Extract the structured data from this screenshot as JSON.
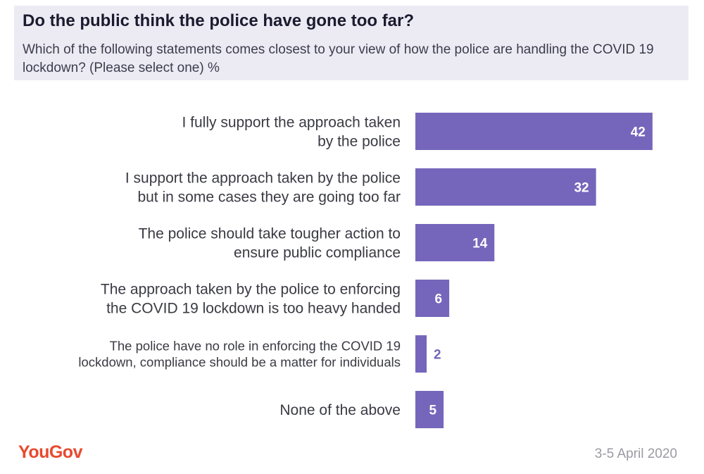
{
  "header": {
    "title": "Do the public think the police have gone too far?",
    "subtitle": "Which of the following statements comes closest to your view of how the police are handling the COVID 19 lockdown? (Please select one) %"
  },
  "chart_data": {
    "type": "bar",
    "orientation": "horizontal",
    "categories": [
      [
        "I fully support the approach taken",
        "by the police"
      ],
      [
        "I support the approach taken by the police",
        "but in some cases they are going too far"
      ],
      [
        "The police should take tougher action to",
        "ensure public compliance"
      ],
      [
        "The approach taken by the police to enforcing",
        "the COVID 19 lockdown is too heavy handed"
      ],
      [
        "The police have no role in enforcing the COVID 19",
        "lockdown, compliance should be a matter for individuals"
      ],
      [
        "None of the above"
      ]
    ],
    "values": [
      42,
      32,
      14,
      6,
      2,
      5
    ],
    "value_labels": [
      "42",
      "32",
      "14",
      "6",
      "2",
      "5"
    ],
    "bar_color": "#7566bb",
    "grid": false
  },
  "footer": {
    "logo": "YouGov",
    "date": "3-5 April 2020"
  }
}
